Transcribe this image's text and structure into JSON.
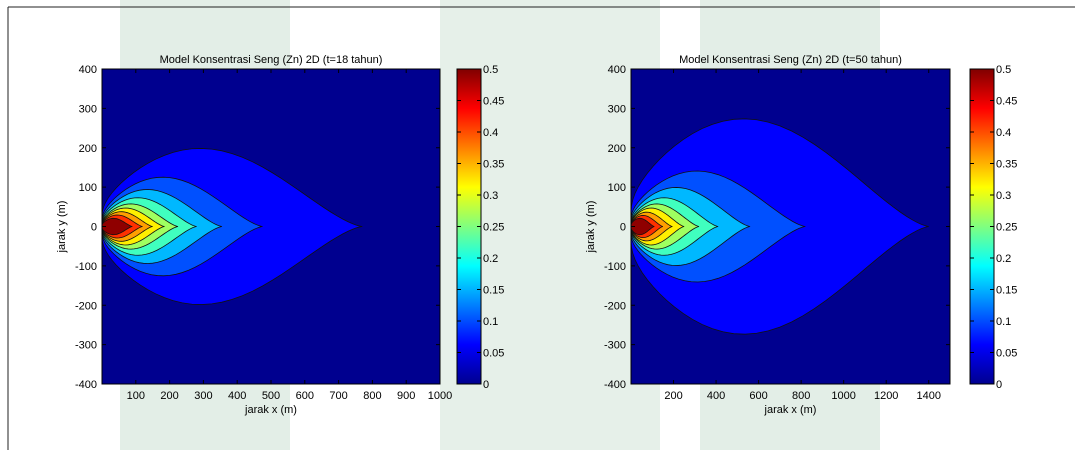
{
  "chart_data": [
    {
      "type": "contour",
      "title": "Model Konsentrasi Seng (Zn) 2D (t=18 tahun)",
      "xlabel": "jarak x (m)",
      "ylabel": "jarak y (m)",
      "xlim": [
        0,
        1000
      ],
      "ylim": [
        -400,
        400
      ],
      "xticks": [
        100,
        200,
        300,
        400,
        500,
        600,
        700,
        800,
        900,
        1000
      ],
      "yticks": [
        400,
        300,
        200,
        100,
        0,
        -100,
        -200,
        -300,
        -400
      ],
      "levels": [
        0.05,
        0.1,
        0.15,
        0.2,
        0.25,
        0.3,
        0.35,
        0.4,
        0.45
      ],
      "contours": [
        {
          "level": 0.05,
          "x_extent": 770,
          "y_halfwidth": 190
        },
        {
          "level": 0.1,
          "x_extent": 475,
          "y_halfwidth": 120
        },
        {
          "level": 0.15,
          "x_extent": 355,
          "y_halfwidth": 90
        },
        {
          "level": 0.2,
          "x_extent": 280,
          "y_halfwidth": 70
        },
        {
          "level": 0.25,
          "x_extent": 225,
          "y_halfwidth": 55
        },
        {
          "level": 0.3,
          "x_extent": 185,
          "y_halfwidth": 45
        },
        {
          "level": 0.35,
          "x_extent": 150,
          "y_halfwidth": 36
        },
        {
          "level": 0.4,
          "x_extent": 120,
          "y_halfwidth": 28
        },
        {
          "level": 0.45,
          "x_extent": 90,
          "y_halfwidth": 20
        }
      ],
      "colorbar": {
        "min": 0,
        "max": 0.5,
        "ticks": [
          "0.5",
          "0.45",
          "0.4",
          "0.35",
          "0.3",
          "0.25",
          "0.2",
          "0.15",
          "0.1",
          "0.05",
          "0"
        ]
      }
    },
    {
      "type": "contour",
      "title": "Model Konsentrasi Seng (Zn) 2D (t=50 tahun)",
      "xlabel": "jarak x (m)",
      "ylabel": "jarak y (m)",
      "xlim": [
        0,
        1500
      ],
      "ylim": [
        -400,
        400
      ],
      "xticks": [
        200,
        400,
        600,
        800,
        1000,
        1200,
        1400
      ],
      "yticks": [
        400,
        300,
        200,
        100,
        0,
        -100,
        -200,
        -300,
        -400
      ],
      "levels": [
        0.05,
        0.1,
        0.15,
        0.2,
        0.25,
        0.3,
        0.35,
        0.4,
        0.45
      ],
      "contours": [
        {
          "level": 0.05,
          "x_extent": 1400,
          "y_halfwidth": 262
        },
        {
          "level": 0.1,
          "x_extent": 820,
          "y_halfwidth": 135
        },
        {
          "level": 0.15,
          "x_extent": 560,
          "y_halfwidth": 95
        },
        {
          "level": 0.2,
          "x_extent": 410,
          "y_halfwidth": 70
        },
        {
          "level": 0.25,
          "x_extent": 320,
          "y_halfwidth": 55
        },
        {
          "level": 0.3,
          "x_extent": 250,
          "y_halfwidth": 45
        },
        {
          "level": 0.35,
          "x_extent": 195,
          "y_halfwidth": 35
        },
        {
          "level": 0.4,
          "x_extent": 150,
          "y_halfwidth": 27
        },
        {
          "level": 0.45,
          "x_extent": 110,
          "y_halfwidth": 20
        }
      ],
      "colorbar": {
        "min": 0,
        "max": 0.5,
        "ticks": [
          "0.5",
          "0.45",
          "0.4",
          "0.35",
          "0.3",
          "0.25",
          "0.2",
          "0.15",
          "0.1",
          "0.05",
          "0"
        ]
      }
    }
  ],
  "colors": {
    "background_band": "#e3eee7",
    "frame": "#222222",
    "contour_line": "#111111",
    "fills": [
      "#00008f",
      "#0000ff",
      "#0050ff",
      "#00b8ff",
      "#40ffbf",
      "#9fff60",
      "#ffef00",
      "#ff9f00",
      "#ff3000",
      "#8f0000"
    ]
  }
}
